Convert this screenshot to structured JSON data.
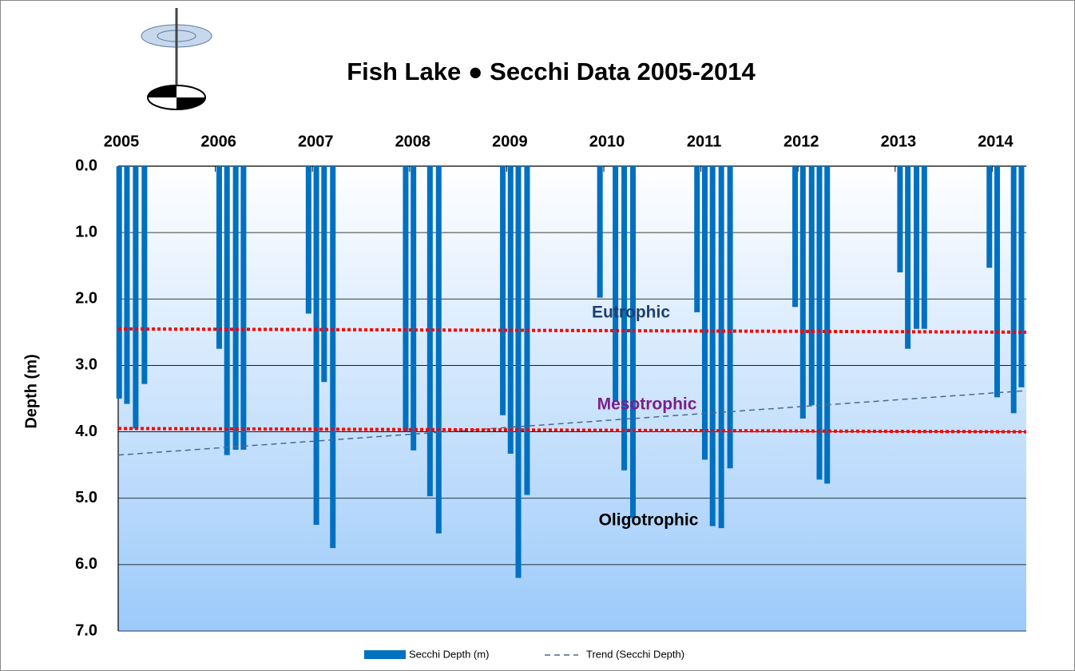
{
  "chart_data": {
    "type": "bar",
    "title": "Fish Lake ● Secchi Data 2005-2014",
    "y_label": "Depth (m)",
    "xlim": [
      2005,
      2014.35
    ],
    "xticks": [
      2005,
      2006,
      2007,
      2008,
      2009,
      2010,
      2011,
      2012,
      2013,
      2014
    ],
    "ylim": [
      0,
      7
    ],
    "y_inverted": true,
    "yticks": [
      {
        "value": 0,
        "label": "0.0"
      },
      {
        "value": 1,
        "label": "1.0"
      },
      {
        "value": 2,
        "label": "2.0"
      },
      {
        "value": 3,
        "label": "3.0"
      },
      {
        "value": 4,
        "label": "4.0"
      },
      {
        "value": 5,
        "label": "5.0"
      },
      {
        "value": 6,
        "label": "6.0"
      },
      {
        "value": 7,
        "label": "7.0"
      }
    ],
    "grid": true,
    "series": [
      {
        "name": "Secchi Depth (m)",
        "type": "bar",
        "color": "#0070c0",
        "x": [
          2005.01,
          2005.09,
          2005.18,
          2005.27,
          2006.04,
          2006.12,
          2006.21,
          2006.29,
          2006.96,
          2007.04,
          2007.12,
          2007.21,
          2007.96,
          2008.04,
          2008.21,
          2008.3,
          2008.96,
          2009.04,
          2009.12,
          2009.21,
          2009.96,
          2010.12,
          2010.21,
          2010.3,
          2010.96,
          2011.04,
          2011.12,
          2011.21,
          2011.3,
          2011.97,
          2012.05,
          2012.14,
          2012.22,
          2012.3,
          2013.05,
          2013.13,
          2013.22,
          2013.3,
          2013.97,
          2014.05,
          2014.22,
          2014.3
        ],
        "values": [
          3.5,
          3.58,
          3.95,
          3.28,
          2.75,
          4.35,
          4.27,
          4.27,
          2.22,
          5.4,
          3.25,
          5.75,
          4.0,
          4.28,
          4.97,
          5.53,
          3.75,
          4.33,
          6.2,
          4.95,
          1.98,
          3.55,
          4.58,
          5.3,
          2.2,
          4.42,
          5.42,
          5.45,
          4.55,
          2.12,
          3.8,
          3.6,
          4.72,
          4.78,
          1.6,
          2.75,
          2.45,
          2.45,
          1.53,
          3.48,
          3.72,
          3.33
        ]
      },
      {
        "name": "Trend (Secchi Depth)",
        "type": "line",
        "color": "#4a6a8c",
        "dashed": true,
        "x": [
          2005,
          2014.35
        ],
        "values": [
          4.35,
          3.38
        ]
      }
    ],
    "reference_lines": [
      {
        "color": "#ff0000",
        "x": [
          2005,
          2014.35
        ],
        "values": [
          2.45,
          2.5
        ]
      },
      {
        "color": "#ff0000",
        "x": [
          2005,
          2014.35
        ],
        "values": [
          3.95,
          4.0
        ]
      }
    ],
    "annotations": [
      {
        "text": "Eutrophic",
        "color": "#1f3f6e"
      },
      {
        "text": "Mesotrophic",
        "color": "#7b1f8a"
      },
      {
        "text": "Oligotrophic",
        "color": "#000000"
      }
    ]
  }
}
